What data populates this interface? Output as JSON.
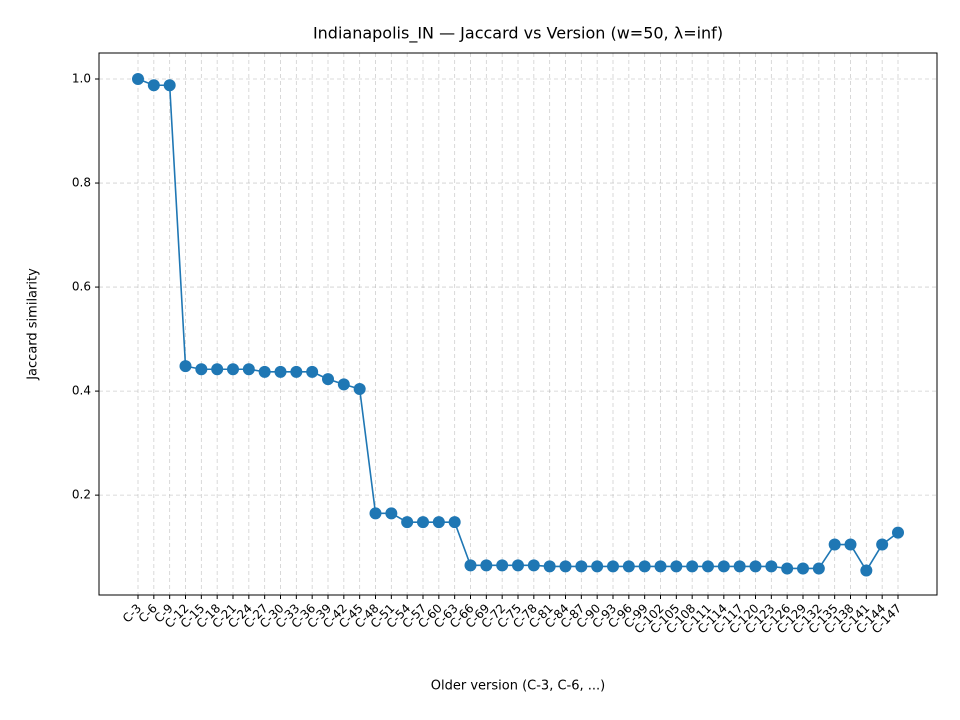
{
  "chart_data": {
    "type": "line",
    "title": "Indianapolis_IN — Jaccard vs Version (w=50, λ=inf)",
    "x_label": "Older version (C-3, C-6, ...)",
    "y_label": "Jaccard similarity",
    "categories": [
      "C-3",
      "C-6",
      "C-9",
      "C-12",
      "C-15",
      "C-18",
      "C-21",
      "C-24",
      "C-27",
      "C-30",
      "C-33",
      "C-36",
      "C-39",
      "C-42",
      "C-45",
      "C-48",
      "C-51",
      "C-54",
      "C-57",
      "C-60",
      "C-63",
      "C-66",
      "C-69",
      "C-72",
      "C-75",
      "C-78",
      "C-81",
      "C-84",
      "C-87",
      "C-90",
      "C-93",
      "C-96",
      "C-99",
      "C-102",
      "C-105",
      "C-108",
      "C-111",
      "C-114",
      "C-117",
      "C-120",
      "C-123",
      "C-126",
      "C-129",
      "C-132",
      "C-135",
      "C-138",
      "C-141",
      "C-144",
      "C-147"
    ],
    "series": [
      {
        "name": "Jaccard",
        "color": "#1f77b4",
        "values": [
          1.0,
          0.988,
          0.988,
          0.448,
          0.442,
          0.442,
          0.442,
          0.442,
          0.437,
          0.437,
          0.437,
          0.437,
          0.423,
          0.413,
          0.404,
          0.165,
          0.165,
          0.148,
          0.148,
          0.148,
          0.148,
          0.065,
          0.065,
          0.065,
          0.065,
          0.065,
          0.063,
          0.063,
          0.063,
          0.063,
          0.063,
          0.063,
          0.063,
          0.063,
          0.063,
          0.063,
          0.063,
          0.063,
          0.063,
          0.063,
          0.063,
          0.059,
          0.059,
          0.059,
          0.105,
          0.105,
          0.055,
          0.105,
          0.128
        ]
      }
    ],
    "ylim": [
      0.008,
      1.05
    ],
    "yticks": [
      0.2,
      0.4,
      0.6,
      0.8,
      {
        "value": 1,
        "label": "1.0"
      }
    ],
    "grid": true
  }
}
